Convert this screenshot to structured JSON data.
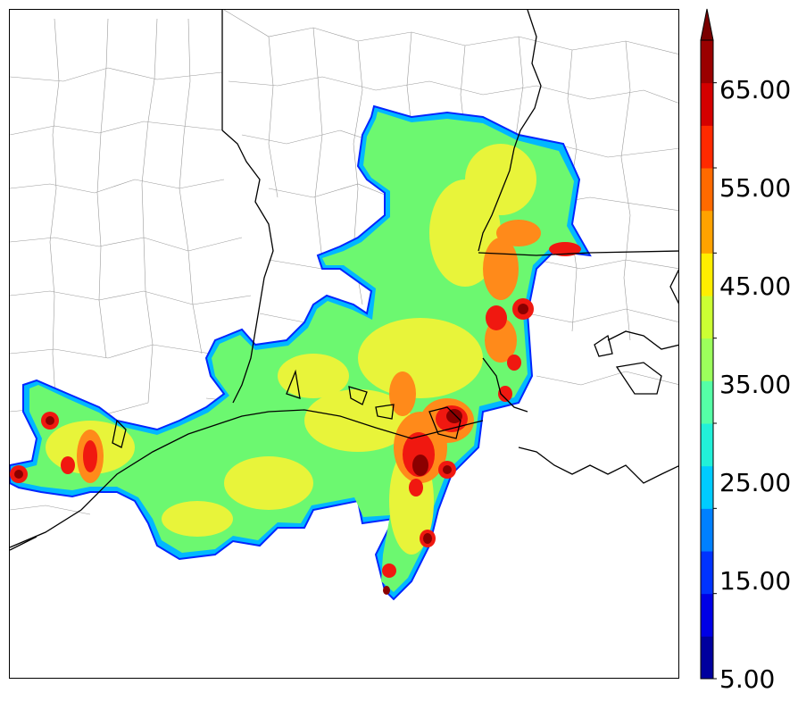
{
  "map": {
    "description_free": true
  },
  "colorbar": {
    "colors": [
      "#00009e",
      "#0000e6",
      "#0033ff",
      "#0080ff",
      "#00ccff",
      "#22f0d8",
      "#55ffa6",
      "#9cff5c",
      "#ccff33",
      "#ffee00",
      "#ffa200",
      "#ff6a00",
      "#ff2a00",
      "#d40000",
      "#9a0000"
    ],
    "extend_arrow_color": "#7a0000",
    "tick_labels": [
      "5.00",
      "15.00",
      "25.00",
      "35.00",
      "45.00",
      "55.00",
      "65.00"
    ]
  }
}
